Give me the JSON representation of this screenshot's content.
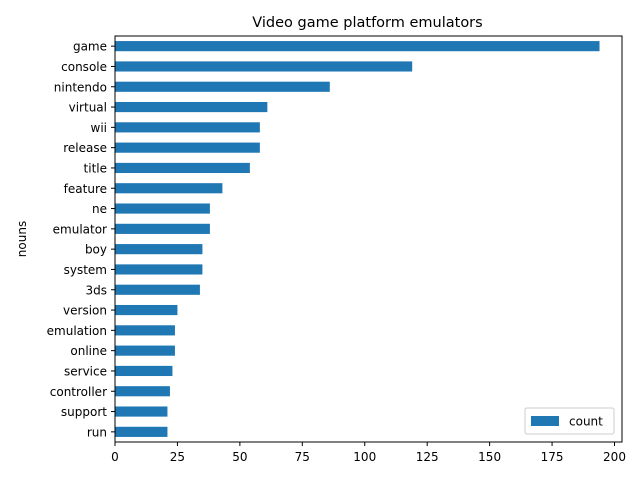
{
  "chart_data": {
    "type": "bar",
    "orientation": "horizontal",
    "title": "Video game platform emulators",
    "xlabel": "",
    "ylabel": "nouns",
    "categories": [
      "game",
      "console",
      "nintendo",
      "virtual",
      "wii",
      "release",
      "title",
      "feature",
      "ne",
      "emulator",
      "boy",
      "system",
      "3ds",
      "version",
      "emulation",
      "online",
      "service",
      "controller",
      "support",
      "run"
    ],
    "series": [
      {
        "name": "count",
        "color": "#1f77b4",
        "values": [
          194,
          119,
          86,
          61,
          58,
          58,
          54,
          43,
          38,
          38,
          35,
          35,
          34,
          25,
          24,
          24,
          23,
          22,
          21,
          21
        ]
      }
    ],
    "xlim": [
      0,
      203
    ],
    "xticks": [
      0,
      25,
      50,
      75,
      100,
      125,
      150,
      175,
      200
    ],
    "grid": false,
    "legend": {
      "placement": "lower-right"
    }
  }
}
